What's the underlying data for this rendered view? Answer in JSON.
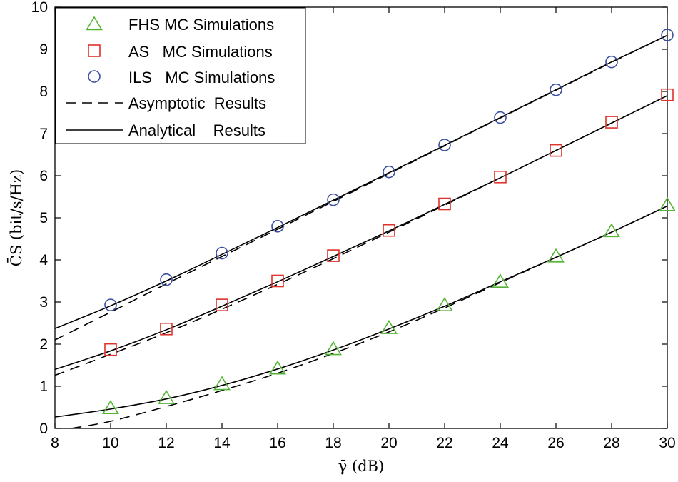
{
  "chart_data": {
    "type": "line",
    "xlabel": "γ̄ (dB)",
    "ylabel": "C̄S (bit/s/Hz)",
    "xlim": [
      8,
      30
    ],
    "ylim": [
      0,
      10
    ],
    "xticks": [
      "8",
      "10",
      "12",
      "14",
      "16",
      "18",
      "20",
      "22",
      "24",
      "26",
      "28",
      "30"
    ],
    "yticks": [
      "0",
      "1",
      "2",
      "3",
      "4",
      "5",
      "6",
      "7",
      "8",
      "9",
      "10"
    ],
    "grid": false,
    "legend_position": "top-left",
    "legend": {
      "fhs": "FHS MC Simulations",
      "as": "AS   MC Simulations",
      "ils": "ILS   MC Simulations",
      "asymptotic": "Asymptotic  Results",
      "analytical": "Analytical    Results"
    },
    "colors": {
      "fhs": "#55b435",
      "as": "#e0312a",
      "ils": "#3a4fa0",
      "line": "#000000"
    },
    "markers": {
      "fhs": {
        "x": [
          10,
          12,
          14,
          16,
          18,
          20,
          22,
          24,
          26,
          28,
          30
        ],
        "y": [
          0.48,
          0.72,
          1.05,
          1.42,
          1.88,
          2.38,
          2.92,
          3.48,
          4.08,
          4.68,
          5.3
        ]
      },
      "as": {
        "x": [
          10,
          12,
          14,
          16,
          18,
          20,
          22,
          24,
          26,
          28,
          30
        ],
        "y": [
          1.87,
          2.36,
          2.93,
          3.5,
          4.1,
          4.7,
          5.33,
          5.97,
          6.6,
          7.27,
          7.92
        ]
      },
      "ils": {
        "x": [
          10,
          12,
          14,
          16,
          18,
          20,
          22,
          24,
          26,
          28,
          30
        ],
        "y": [
          2.93,
          3.53,
          4.16,
          4.8,
          5.43,
          6.09,
          6.73,
          7.38,
          8.04,
          8.7,
          9.34
        ]
      }
    },
    "analytical": {
      "fhs": {
        "x": [
          8,
          10,
          12,
          14,
          16,
          18,
          20,
          22,
          24,
          26,
          28,
          30
        ],
        "y": [
          0.27,
          0.46,
          0.7,
          1.02,
          1.41,
          1.86,
          2.36,
          2.9,
          3.48,
          4.06,
          4.66,
          5.28
        ]
      },
      "as": {
        "x": [
          8,
          10,
          12,
          14,
          16,
          18,
          20,
          22,
          24,
          26,
          28,
          30
        ],
        "y": [
          1.4,
          1.84,
          2.34,
          2.9,
          3.48,
          4.08,
          4.69,
          5.32,
          5.95,
          6.6,
          7.25,
          7.9
        ]
      },
      "ils": {
        "x": [
          8,
          10,
          12,
          14,
          16,
          18,
          20,
          22,
          24,
          26,
          28,
          30
        ],
        "y": [
          2.37,
          2.91,
          3.5,
          4.13,
          4.77,
          5.42,
          6.07,
          6.72,
          7.38,
          8.04,
          8.7,
          9.33
        ]
      }
    },
    "asymptotic": {
      "fhs": {
        "x": [
          8.6,
          10,
          12,
          14,
          16,
          18,
          20,
          22,
          24,
          26,
          28,
          30
        ],
        "y": [
          0,
          0.17,
          0.52,
          0.9,
          1.31,
          1.78,
          2.29,
          2.86,
          3.46,
          4.06,
          4.66,
          5.28
        ]
      },
      "as": {
        "x": [
          8,
          10,
          12,
          14,
          16,
          18,
          20,
          22,
          24,
          26,
          28,
          30
        ],
        "y": [
          1.26,
          1.76,
          2.27,
          2.83,
          3.42,
          4.03,
          4.66,
          5.3,
          5.95,
          6.6,
          7.25,
          7.9
        ]
      },
      "ils": {
        "x": [
          8,
          10,
          12,
          14,
          16,
          18,
          20,
          22,
          24,
          26,
          28,
          30
        ],
        "y": [
          2.1,
          2.76,
          3.43,
          4.08,
          4.73,
          5.39,
          6.05,
          6.71,
          7.37,
          8.03,
          8.69,
          9.33
        ]
      }
    }
  }
}
